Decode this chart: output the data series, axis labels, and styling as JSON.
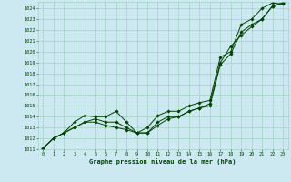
{
  "title": "Graphe pression niveau de la mer (hPa)",
  "background_color": "#cce8f0",
  "grid_color": "#99ccbb",
  "line_color": "#004400",
  "marker_color": "#004400",
  "xlim": [
    -0.5,
    23.5
  ],
  "ylim": [
    1011,
    1024.6
  ],
  "xticks": [
    0,
    1,
    2,
    3,
    4,
    5,
    6,
    7,
    8,
    9,
    10,
    11,
    12,
    13,
    14,
    15,
    16,
    17,
    18,
    19,
    20,
    21,
    22,
    23
  ],
  "yticks": [
    1011,
    1012,
    1013,
    1014,
    1015,
    1016,
    1017,
    1018,
    1019,
    1020,
    1021,
    1022,
    1023,
    1024
  ],
  "line1_x": [
    0,
    1,
    2,
    3,
    4,
    5,
    6,
    7,
    8,
    9,
    10,
    11,
    12,
    13,
    14,
    15,
    16,
    17,
    18,
    19,
    20,
    21,
    22,
    23
  ],
  "line1_y": [
    1011.1,
    1012.0,
    1012.5,
    1013.5,
    1014.1,
    1014.0,
    1014.0,
    1014.5,
    1013.5,
    1012.5,
    1013.0,
    1014.1,
    1014.5,
    1014.5,
    1015.0,
    1015.3,
    1015.5,
    1019.5,
    1020.0,
    1022.5,
    1023.0,
    1024.0,
    1024.5,
    1024.4
  ],
  "line2_x": [
    0,
    1,
    2,
    3,
    4,
    5,
    6,
    7,
    8,
    9,
    10,
    11,
    12,
    13,
    14,
    15,
    16,
    17,
    18,
    19,
    20,
    21,
    22,
    23
  ],
  "line2_y": [
    1011.1,
    1012.0,
    1012.5,
    1013.0,
    1013.5,
    1013.8,
    1013.5,
    1013.5,
    1013.0,
    1012.5,
    1012.5,
    1013.5,
    1014.0,
    1014.0,
    1014.5,
    1014.8,
    1015.2,
    1019.0,
    1020.5,
    1021.5,
    1022.3,
    1023.0,
    1024.2,
    1024.5
  ],
  "line3_x": [
    0,
    1,
    2,
    3,
    4,
    5,
    6,
    7,
    8,
    9,
    10,
    11,
    12,
    13,
    14,
    15,
    16,
    17,
    18,
    19,
    20,
    21,
    22,
    23
  ],
  "line3_y": [
    1011.1,
    1012.0,
    1012.5,
    1013.0,
    1013.5,
    1013.5,
    1013.2,
    1013.0,
    1012.8,
    1012.5,
    1012.5,
    1013.2,
    1013.8,
    1014.0,
    1014.5,
    1014.8,
    1015.0,
    1018.8,
    1019.8,
    1021.8,
    1022.5,
    1023.0,
    1024.2,
    1024.5
  ]
}
